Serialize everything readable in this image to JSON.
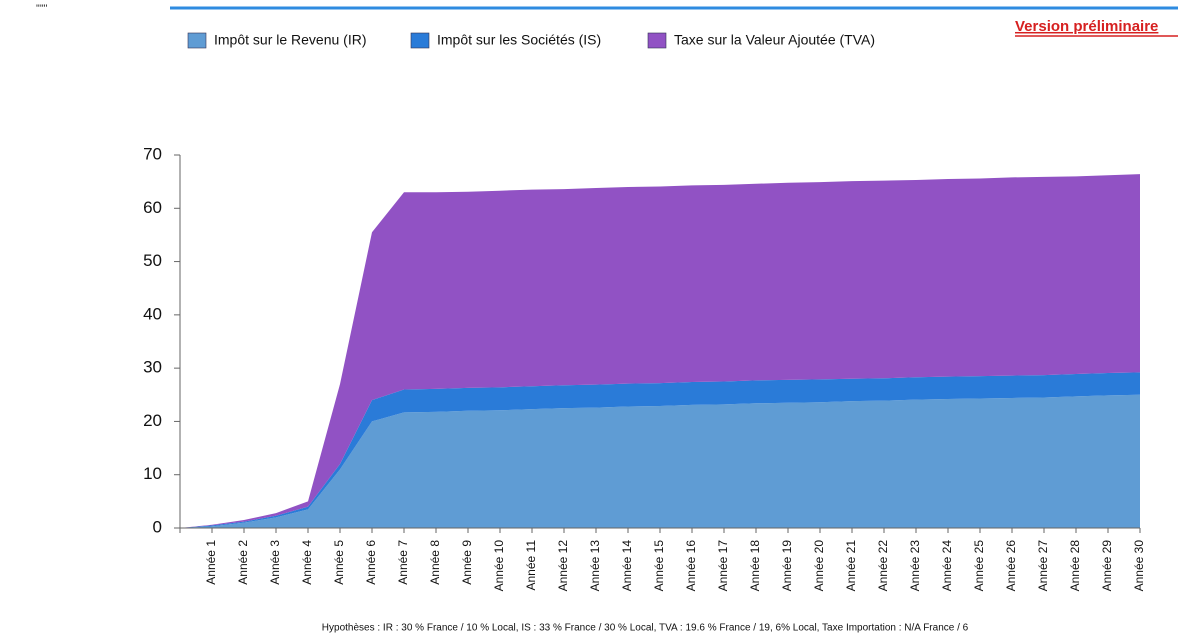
{
  "header": {
    "mark": "''''''",
    "notice": "Version préliminaire"
  },
  "chart_data": {
    "type": "stacked_area",
    "categories": [
      null,
      "Année 1",
      "Année 2",
      "Année 3",
      "Année 4",
      "Année 5",
      "Année 6",
      "Année 7",
      "Année 8",
      "Année 9",
      "Année 10",
      "Année 11",
      "Année 12",
      "Année 13",
      "Année 14",
      "Année 15",
      "Année 16",
      "Année 17",
      "Année 18",
      "Année 19",
      "Année 20",
      "Année 21",
      "Année 22",
      "Année 23",
      "Année 24",
      "Année 25",
      "Année 26",
      "Année 27",
      "Année 28",
      "Année 29",
      "Année 30"
    ],
    "series": [
      {
        "name": "Impôt sur le Revenu (IR)",
        "color": "#5f9cd4",
        "values": [
          0,
          0.3,
          1,
          2,
          3.5,
          11,
          20,
          21.7,
          21.8,
          22,
          22.1,
          22.3,
          22.5,
          22.6,
          22.8,
          22.9,
          23.1,
          23.2,
          23.4,
          23.5,
          23.6,
          23.8,
          23.9,
          24.1,
          24.2,
          24.3,
          24.4,
          24.5,
          24.7,
          24.9,
          25
        ]
      },
      {
        "name": "Impôt sur les Sociétés (IS)",
        "color": "#2a7bd8",
        "values": [
          0,
          0.2,
          0.2,
          0.3,
          0.5,
          1,
          4,
          4.3,
          4.3,
          4.3,
          4.3,
          4.3,
          4.3,
          4.3,
          4.3,
          4.3,
          4.3,
          4.3,
          4.3,
          4.3,
          4.3,
          4.2,
          4.2,
          4.2,
          4.2,
          4.2,
          4.2,
          4.2,
          4.2,
          4.2,
          4.2
        ]
      },
      {
        "name": "Taxe sur la Valeur Ajoutée (TVA)",
        "color": "#9152c4",
        "values": [
          0,
          0.1,
          0.3,
          0.5,
          1,
          15,
          31.5,
          37,
          36.9,
          36.8,
          36.9,
          36.9,
          36.8,
          36.9,
          36.9,
          36.9,
          36.9,
          36.9,
          36.9,
          37,
          37,
          37.1,
          37.1,
          37,
          37.1,
          37.1,
          37.2,
          37.2,
          37.1,
          37.1,
          37.2
        ]
      }
    ],
    "ylim": [
      0,
      70
    ],
    "yticks": [
      0,
      10,
      20,
      30,
      40,
      50,
      60,
      70
    ],
    "footnote": "Hypothèses : IR : 30 % France / 10 % Local, IS : 33 % France / 30 % Local, TVA : 19.6 % France / 19, 6% Local, Taxe Importation : N/A France / 6"
  }
}
